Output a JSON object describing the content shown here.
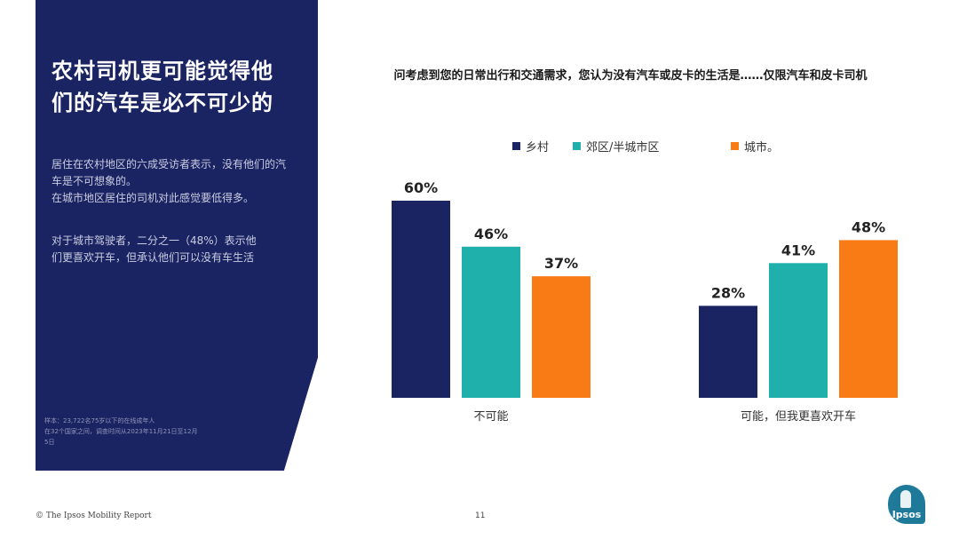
{
  "panel": {
    "title_line1": "农村司机更可能觉得他",
    "title_line2": "们的汽车是必不可少的",
    "paragraph1_line1": "居住在农村地区的六成受访者表示，没有他们的汽",
    "paragraph1_line2": "车是不可想象的。",
    "paragraph2": "在城市地区居住的司机对此感觉要低得多。",
    "paragraph3_line1": "对于城市驾驶者，二分之一（48%）表示他",
    "paragraph3_line2": "们更喜欢开车，但承认他们可以没有车生活",
    "footnote_line1": "样本：23,722名75岁以下的在线成年人",
    "footnote_line2": "在32个国家之间，调查时间从2023年11月21日至12月",
    "footnote_line3": "5日"
  },
  "chart_data": {
    "type": "bar",
    "title": "问考虑到您的日常出行和交通需求，您认为没有汽车或皮卡的生活是……仅限汽车和皮卡司机",
    "categories": [
      "不可能",
      "可能，但我更喜欢开车"
    ],
    "series": [
      {
        "name": "乡村",
        "color": "#1b2463",
        "values": [
          60,
          28
        ],
        "labels": [
          "60%",
          "28%"
        ]
      },
      {
        "name": "郊区/半城市区",
        "color": "#1fb0ac",
        "values": [
          46,
          41
        ],
        "labels": [
          "46%",
          "41%"
        ]
      },
      {
        "name": "城市。",
        "color": "#f97b16",
        "values": [
          37,
          48
        ],
        "labels": [
          "37%",
          "48%"
        ]
      }
    ],
    "ylim": [
      0,
      60
    ],
    "legend_position": "top",
    "grid": false
  },
  "footer": {
    "copyright": "© The Ipsos Mobility Report",
    "page_number": "11",
    "logo_text": "Ipsos"
  }
}
